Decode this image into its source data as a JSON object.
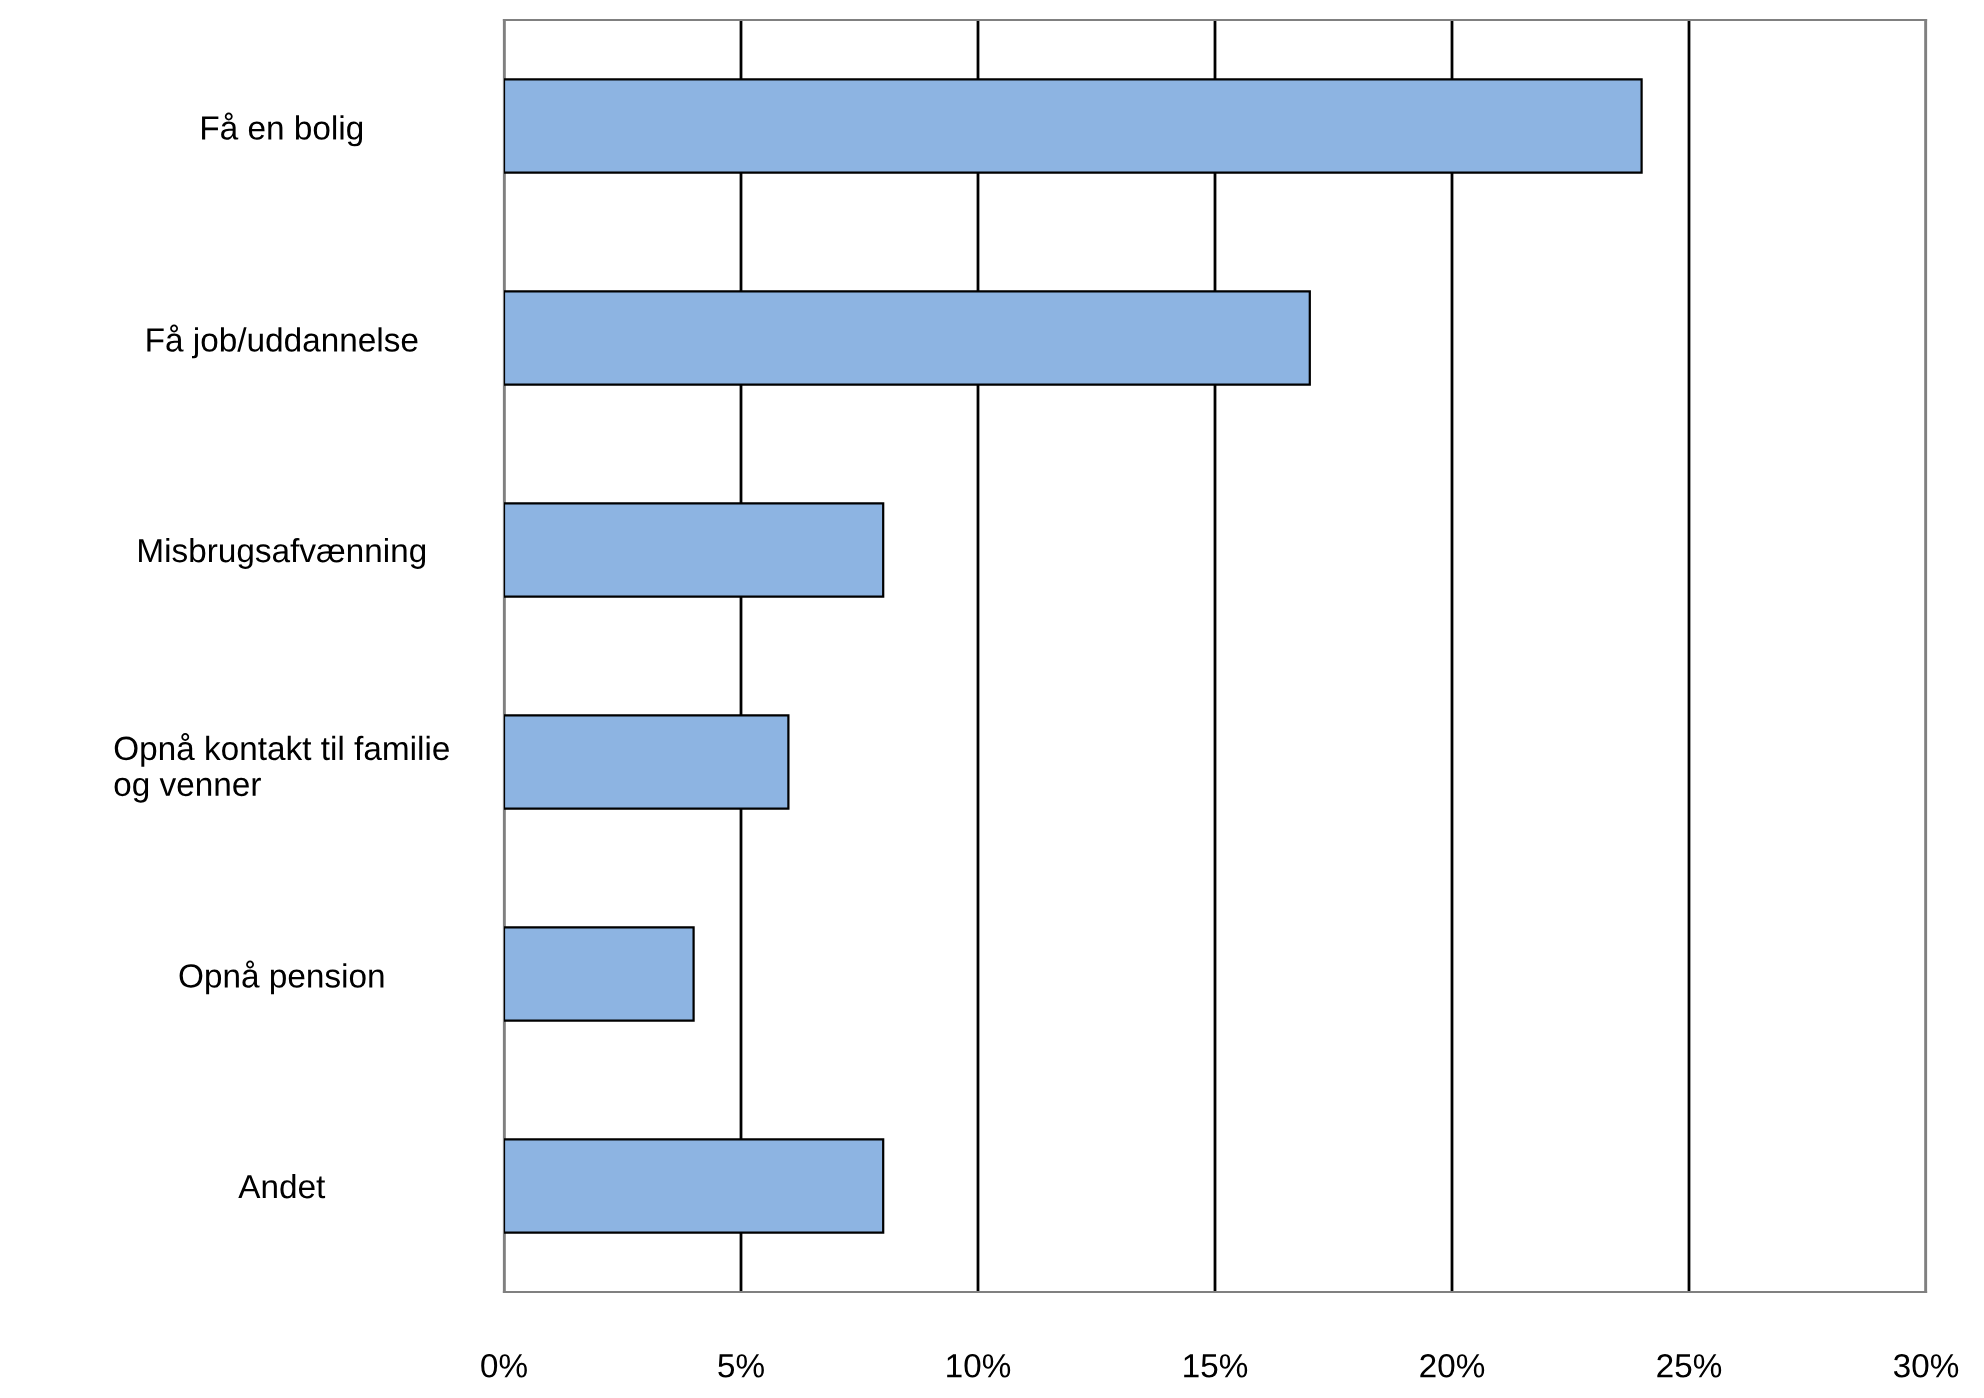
{
  "chart_data": {
    "type": "bar",
    "orientation": "horizontal",
    "categories": [
      "Få en bolig",
      "Få job/uddannelse",
      "Misbrugsafvænning",
      "Opnå kontakt til familie\nog venner",
      "Opnå pension",
      "Andet"
    ],
    "values": [
      24,
      17,
      8,
      6,
      4,
      8
    ],
    "color": "#8db4e2",
    "xlim": [
      0,
      30
    ],
    "xticks": [
      {
        "value": 0,
        "label": "0%"
      },
      {
        "value": 5,
        "label": "5%"
      },
      {
        "value": 10,
        "label": "10%"
      },
      {
        "value": 15,
        "label": "15%"
      },
      {
        "value": 20,
        "label": "20%"
      },
      {
        "value": 25,
        "label": "25%"
      },
      {
        "value": 30,
        "label": "30%"
      }
    ],
    "grid": "x",
    "legend": false
  }
}
